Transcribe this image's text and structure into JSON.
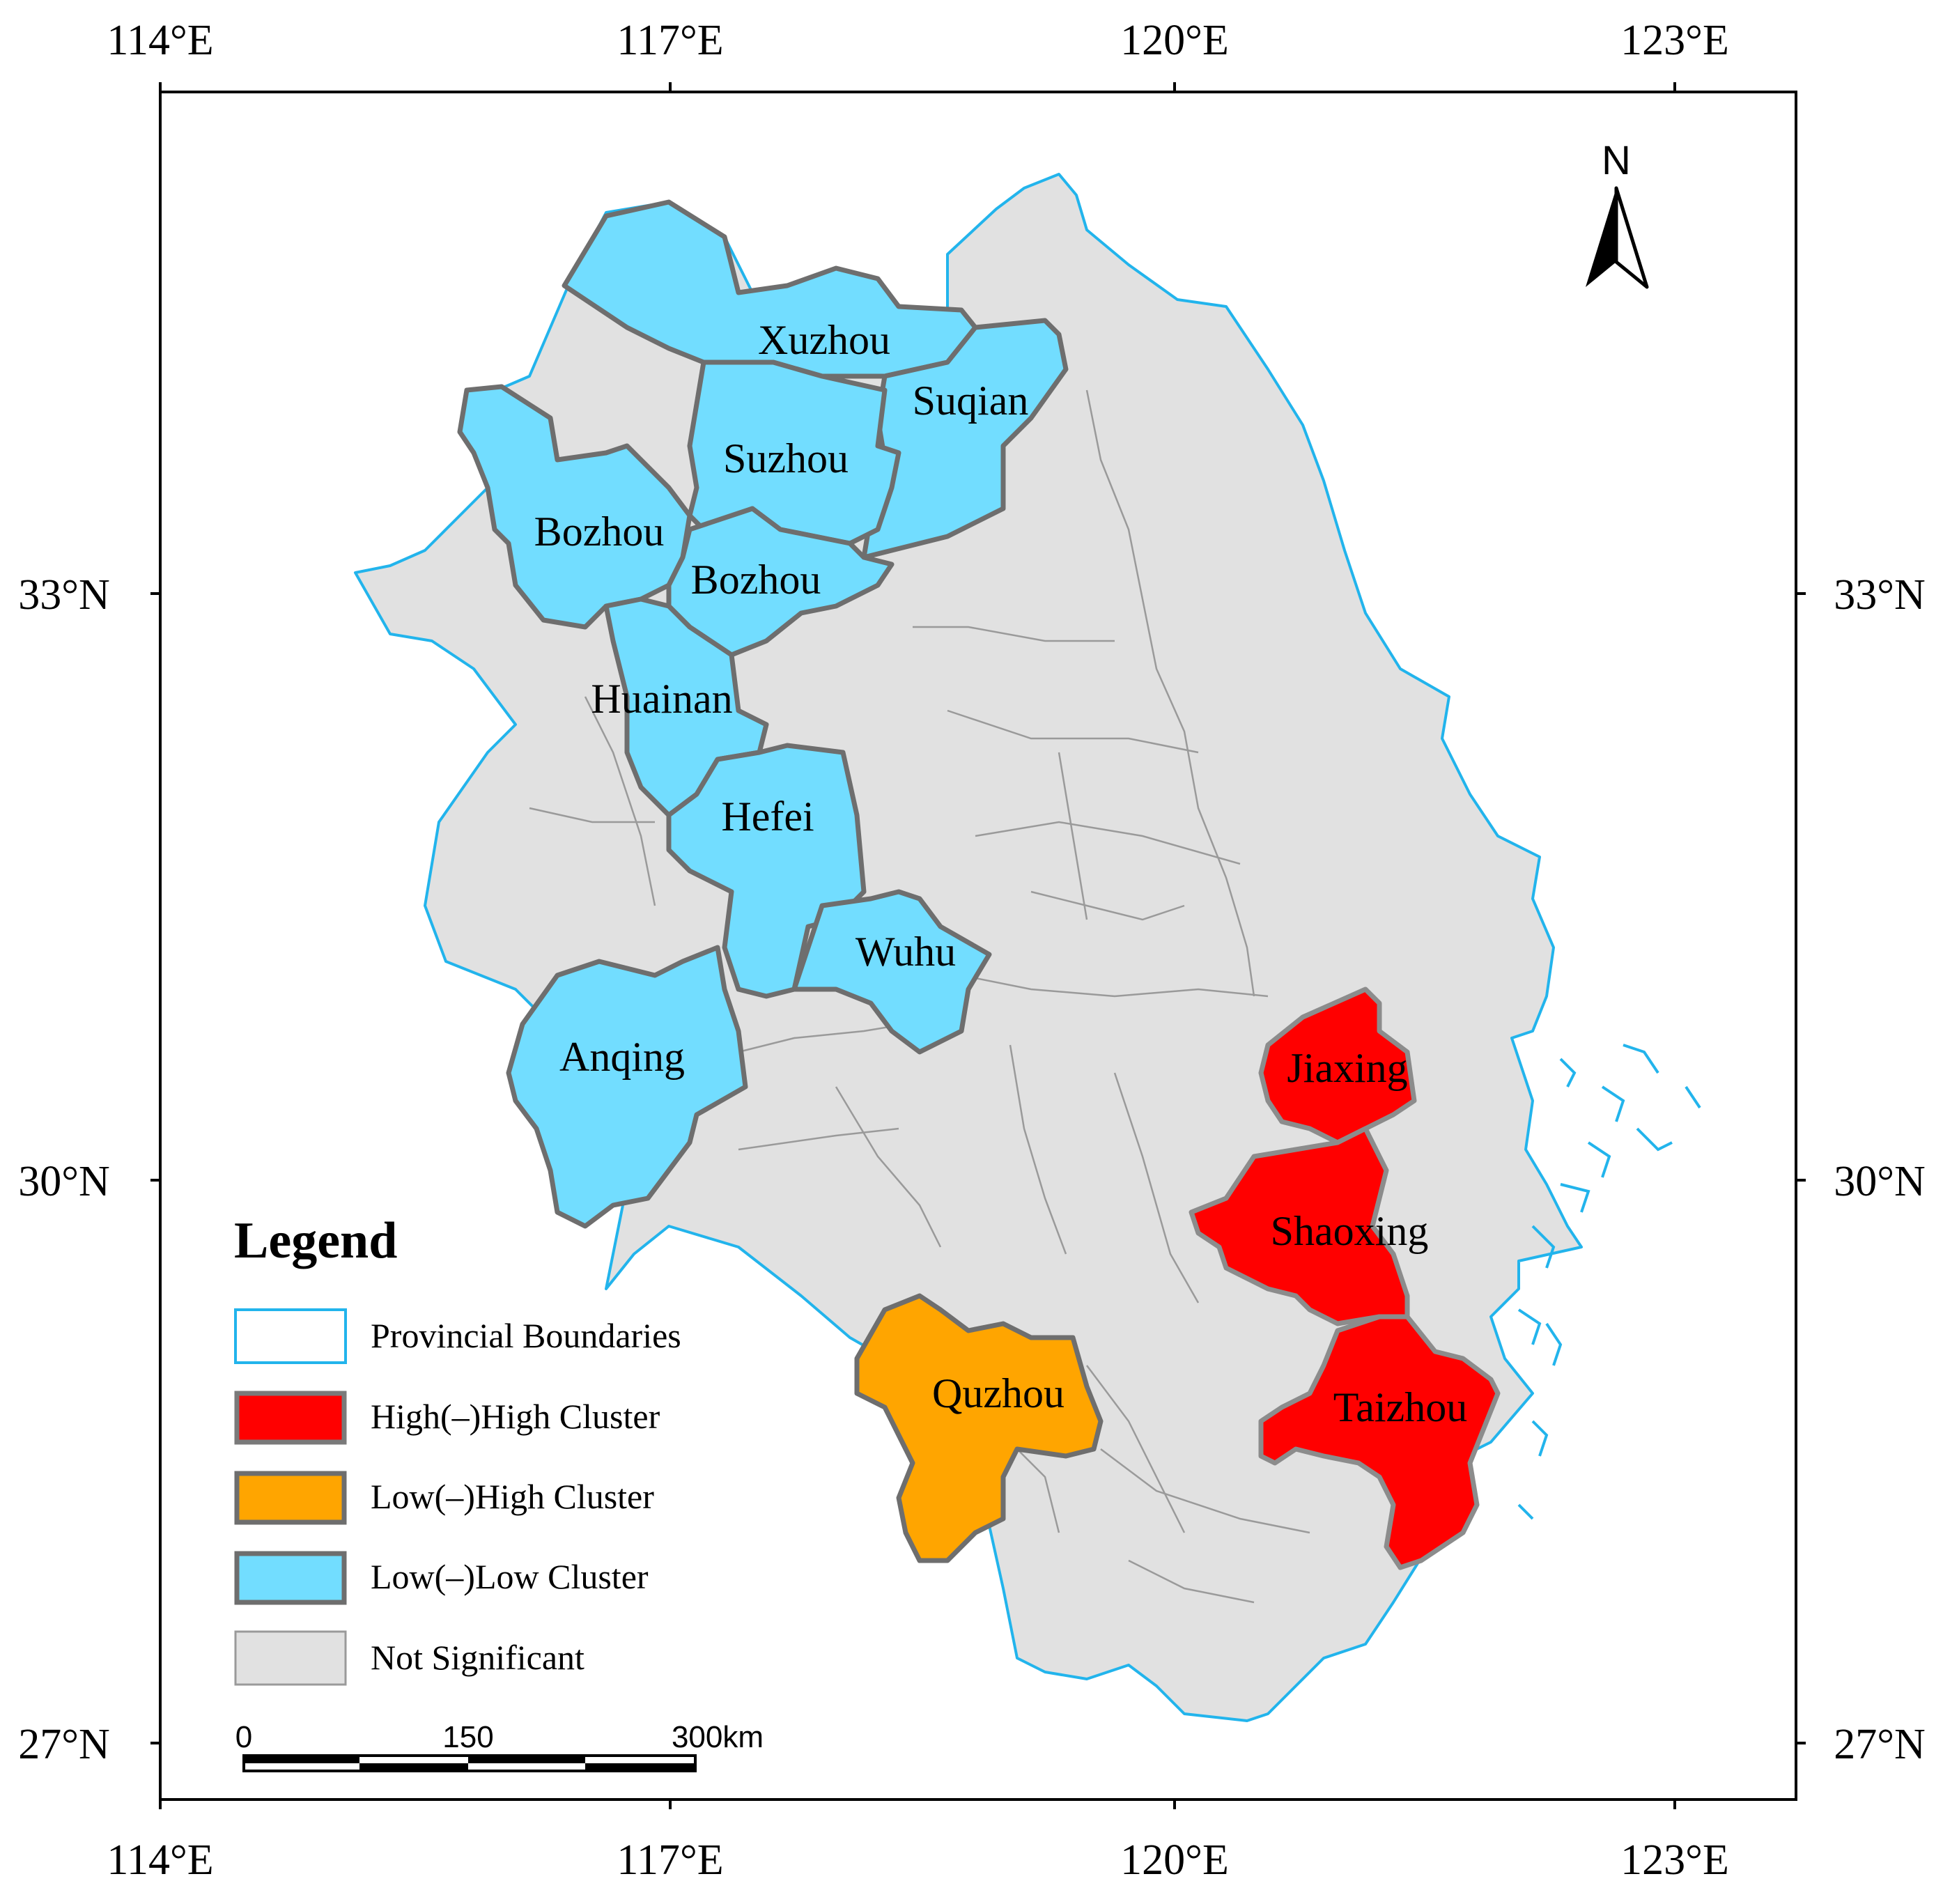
{
  "map": {
    "lon_labels": [
      "114°E",
      "117°E",
      "120°E",
      "123°E"
    ],
    "lat_labels": [
      "33°N",
      "30°N",
      "27°N"
    ],
    "north_label": "N",
    "scale": {
      "ticks": [
        "0",
        "150",
        "300km"
      ]
    },
    "colors": {
      "provincial_boundary": "#22b4ec",
      "high_high": "#ff0000",
      "low_high": "#ffa500",
      "low_low": "#72ddff",
      "not_significant": "#e1e1e1",
      "cluster_outline": "#6e6e6e",
      "city_line": "#9a9a9a"
    },
    "legend": {
      "title": "Legend",
      "items": [
        {
          "label": "Provincial Boundaries",
          "kind": "provincial"
        },
        {
          "label": "High(–)High Cluster",
          "kind": "high_high"
        },
        {
          "label": "Low(–)High Cluster",
          "kind": "low_high"
        },
        {
          "label": "Low(–)Low Cluster",
          "kind": "low_low"
        },
        {
          "label": "Not Significant",
          "kind": "not_significant"
        }
      ]
    },
    "regions": [
      {
        "label": "Xuzhou",
        "cluster": "low_low"
      },
      {
        "label": "Suqian",
        "cluster": "low_low"
      },
      {
        "label": "Suzhou",
        "cluster": "low_low"
      },
      {
        "label": "Bozhou",
        "cluster": "low_low"
      },
      {
        "label": "Bozhou",
        "cluster": "low_low"
      },
      {
        "label": "Huainan",
        "cluster": "low_low"
      },
      {
        "label": "Hefei",
        "cluster": "low_low"
      },
      {
        "label": "Wuhu",
        "cluster": "low_low"
      },
      {
        "label": "Anqing",
        "cluster": "low_low"
      },
      {
        "label": "Jiaxing",
        "cluster": "high_high"
      },
      {
        "label": "Shaoxing",
        "cluster": "high_high"
      },
      {
        "label": "Taizhou",
        "cluster": "high_high"
      },
      {
        "label": "Quzhou",
        "cluster": "low_high"
      }
    ]
  }
}
